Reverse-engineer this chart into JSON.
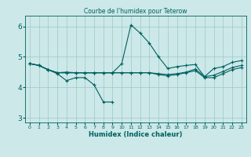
{
  "title": "Courbe de l'humidex pour Teterow",
  "xlabel": "Humidex (Indice chaleur)",
  "bg_color": "#cce8e8",
  "grid_color": "#9dc8c8",
  "line_color": "#006060",
  "xlim": [
    -0.5,
    23.5
  ],
  "ylim": [
    2.85,
    6.35
  ],
  "yticks": [
    3,
    4,
    5,
    6
  ],
  "xticks": [
    0,
    1,
    2,
    3,
    4,
    5,
    6,
    7,
    8,
    9,
    10,
    11,
    12,
    13,
    14,
    15,
    16,
    17,
    18,
    19,
    20,
    21,
    22,
    23
  ],
  "series_low_x": [
    0,
    1,
    2,
    3,
    4,
    5,
    6,
    7,
    8,
    9
  ],
  "series_low_y": [
    4.78,
    4.72,
    4.58,
    4.45,
    4.22,
    4.32,
    4.32,
    4.08,
    3.52,
    3.52
  ],
  "series_peak_x": [
    0,
    1,
    2,
    3,
    4,
    5,
    6,
    7,
    8,
    9,
    10,
    11,
    12,
    13,
    14,
    15,
    16,
    17,
    18,
    19,
    20,
    21,
    22,
    23
  ],
  "series_peak_y": [
    4.78,
    4.72,
    4.58,
    4.48,
    4.5,
    4.48,
    4.48,
    4.48,
    4.48,
    4.48,
    4.78,
    6.05,
    5.78,
    5.45,
    5.0,
    4.62,
    4.68,
    4.72,
    4.75,
    4.35,
    4.62,
    4.68,
    4.82,
    4.88
  ],
  "series_mid_x": [
    0,
    1,
    2,
    3,
    4,
    5,
    6,
    7,
    8,
    9,
    10,
    11,
    12,
    13,
    14,
    15,
    16,
    17,
    18,
    19,
    20,
    21,
    22,
    23
  ],
  "series_mid_y": [
    4.78,
    4.72,
    4.58,
    4.48,
    4.48,
    4.48,
    4.48,
    4.48,
    4.48,
    4.48,
    4.48,
    4.48,
    4.48,
    4.48,
    4.45,
    4.42,
    4.45,
    4.5,
    4.6,
    4.35,
    4.4,
    4.52,
    4.65,
    4.72
  ],
  "series_flat_x": [
    0,
    1,
    2,
    3,
    4,
    5,
    6,
    7,
    8,
    9,
    10,
    11,
    12,
    13,
    14,
    15,
    16,
    17,
    18,
    19,
    20,
    21,
    22,
    23
  ],
  "series_flat_y": [
    4.78,
    4.72,
    4.58,
    4.48,
    4.48,
    4.48,
    4.48,
    4.48,
    4.48,
    4.48,
    4.48,
    4.48,
    4.48,
    4.48,
    4.42,
    4.38,
    4.42,
    4.48,
    4.55,
    4.32,
    4.32,
    4.45,
    4.58,
    4.65
  ]
}
